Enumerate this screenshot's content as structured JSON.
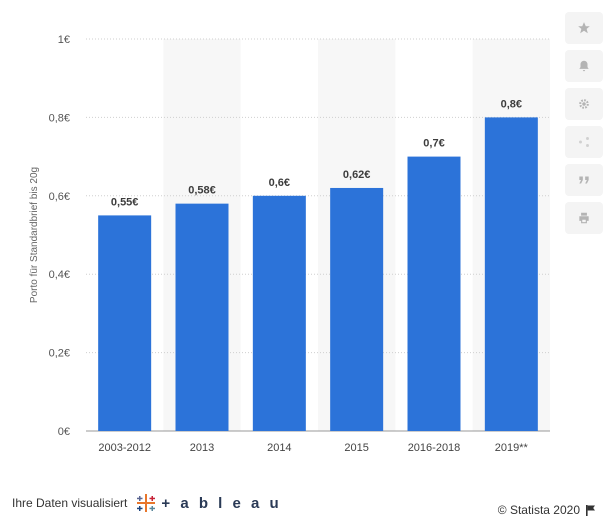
{
  "chart_data": {
    "type": "bar",
    "categories": [
      "2003-2012",
      "2013",
      "2014",
      "2015",
      "2016-2018",
      "2019**"
    ],
    "values": [
      0.55,
      0.58,
      0.6,
      0.62,
      0.7,
      0.8
    ],
    "value_labels": [
      "0,55€",
      "0,58€",
      "0,6€",
      "0,62€",
      "0,7€",
      "0,8€"
    ],
    "ylabel": "Porto für Standardbrief bis 20g",
    "ylim": [
      0,
      1
    ],
    "yticks": [
      0,
      0.2,
      0.4,
      0.6,
      0.8,
      1
    ],
    "ytick_labels": [
      "0€",
      "0,2€",
      "0,4€",
      "0,6€",
      "0,8€",
      "1€"
    ],
    "grid": true,
    "bar_color": "#2c73d9"
  },
  "toolbar": {
    "icons": [
      "star-icon",
      "bell-icon",
      "gear-icon",
      "share-icon",
      "quote-icon",
      "print-icon"
    ]
  },
  "footer": {
    "visualized_label": "Ihre Daten visualisiert",
    "tableau_word": "+ a b l e a u",
    "copyright": "© Statista 2020"
  }
}
